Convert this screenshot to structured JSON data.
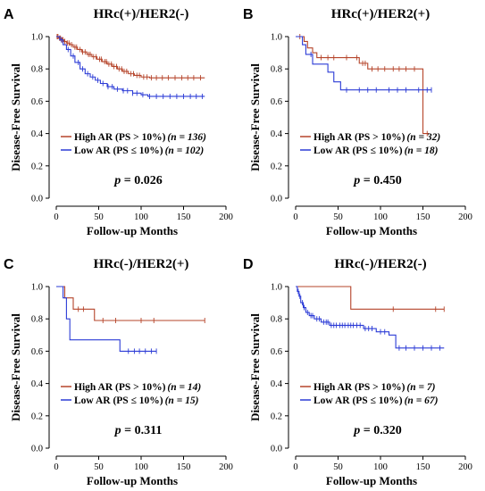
{
  "chart_data": [
    {
      "panel": "A",
      "type": "line",
      "title": "HRc(+)/HER2(-)",
      "xlabel": "Follow-up Months",
      "ylabel": "Disease-Free Survival",
      "xlim": [
        0,
        200
      ],
      "ylim": [
        0,
        1.0
      ],
      "xticks": [
        "0",
        "50",
        "100",
        "150",
        "200"
      ],
      "yticks": [
        "0.0",
        "0.2",
        "0.4",
        "0.6",
        "0.8",
        "1.0"
      ],
      "legend_placement": "lower-left",
      "pvalue_label": "p",
      "pvalue_text": " = 0.026",
      "series": [
        {
          "name": "High AR (PS > 10%)",
          "n_text": "(n = 136)",
          "color": "#B5442A",
          "steps": [
            [
              0,
              1.0
            ],
            [
              3,
              0.99
            ],
            [
              6,
              0.98
            ],
            [
              9,
              0.97
            ],
            [
              12,
              0.96
            ],
            [
              16,
              0.95
            ],
            [
              20,
              0.935
            ],
            [
              25,
              0.92
            ],
            [
              30,
              0.905
            ],
            [
              36,
              0.89
            ],
            [
              42,
              0.875
            ],
            [
              48,
              0.86
            ],
            [
              54,
              0.845
            ],
            [
              60,
              0.83
            ],
            [
              66,
              0.815
            ],
            [
              72,
              0.8
            ],
            [
              78,
              0.785
            ],
            [
              85,
              0.77
            ],
            [
              92,
              0.76
            ],
            [
              100,
              0.75
            ],
            [
              110,
              0.745
            ],
            [
              175,
              0.745
            ]
          ],
          "censors": [
            1,
            2,
            4,
            5,
            7,
            8,
            10,
            13,
            15,
            18,
            22,
            24,
            28,
            31,
            34,
            38,
            40,
            44,
            47,
            51,
            53,
            57,
            59,
            62,
            65,
            68,
            71,
            74,
            77,
            80,
            83,
            88,
            91,
            95,
            98,
            103,
            107,
            112,
            118,
            125,
            132,
            140,
            148,
            155,
            162,
            170
          ]
        },
        {
          "name": "Low AR (PS ≤ 10%)",
          "n_text": "(n = 102)",
          "color": "#2B3BD6",
          "steps": [
            [
              0,
              1.0
            ],
            [
              4,
              0.98
            ],
            [
              8,
              0.95
            ],
            [
              12,
              0.92
            ],
            [
              17,
              0.88
            ],
            [
              22,
              0.84
            ],
            [
              28,
              0.8
            ],
            [
              34,
              0.77
            ],
            [
              40,
              0.75
            ],
            [
              46,
              0.73
            ],
            [
              52,
              0.71
            ],
            [
              60,
              0.69
            ],
            [
              68,
              0.675
            ],
            [
              78,
              0.665
            ],
            [
              90,
              0.65
            ],
            [
              100,
              0.64
            ],
            [
              108,
              0.63
            ],
            [
              175,
              0.63
            ]
          ],
          "censors": [
            6,
            14,
            20,
            26,
            31,
            37,
            43,
            49,
            55,
            61,
            66,
            72,
            79,
            84,
            90,
            95,
            102,
            110,
            118,
            126,
            134,
            142,
            150,
            158,
            165,
            172
          ]
        }
      ]
    },
    {
      "panel": "B",
      "type": "line",
      "title": "HRc(+)/HER2(+)",
      "xlabel": "Follow-up Months",
      "ylabel": "Disease-Free Survival",
      "xlim": [
        0,
        200
      ],
      "ylim": [
        0,
        1.0
      ],
      "xticks": [
        "0",
        "50",
        "100",
        "150",
        "200"
      ],
      "yticks": [
        "0.0",
        "0.2",
        "0.4",
        "0.6",
        "0.8",
        "1.0"
      ],
      "legend_placement": "lower-left",
      "pvalue_label": "p",
      "pvalue_text": " = 0.450",
      "series": [
        {
          "name": "High AR (PS > 10%)",
          "n_text": "(n = 32)",
          "color": "#B5442A",
          "steps": [
            [
              0,
              1.0
            ],
            [
              10,
              0.97
            ],
            [
              14,
              0.93
            ],
            [
              20,
              0.9
            ],
            [
              25,
              0.87
            ],
            [
              75,
              0.835
            ],
            [
              85,
              0.8
            ],
            [
              147,
              0.8
            ],
            [
              150,
              0.4
            ],
            [
              157,
              0.4
            ]
          ],
          "censors": [
            5,
            30,
            38,
            45,
            60,
            72,
            79,
            82,
            90,
            97,
            105,
            115,
            122,
            130,
            140,
            155
          ]
        },
        {
          "name": "Low AR (PS ≤ 10%)",
          "n_text": "(n = 18)",
          "color": "#2B3BD6",
          "steps": [
            [
              0,
              1.0
            ],
            [
              8,
              0.95
            ],
            [
              12,
              0.89
            ],
            [
              20,
              0.83
            ],
            [
              38,
              0.78
            ],
            [
              45,
              0.72
            ],
            [
              53,
              0.67
            ],
            [
              160,
              0.67
            ]
          ],
          "censors": [
            18,
            60,
            75,
            85,
            95,
            110,
            120,
            130,
            145,
            155,
            160
          ]
        }
      ]
    },
    {
      "panel": "C",
      "type": "line",
      "title": "HRc(-)/HER2(+)",
      "xlabel": "Follow-up Months",
      "ylabel": "Disease-Free Survival",
      "xlim": [
        0,
        200
      ],
      "ylim": [
        0,
        1.0
      ],
      "xticks": [
        "0",
        "50",
        "100",
        "150",
        "200"
      ],
      "yticks": [
        "0.0",
        "0.2",
        "0.4",
        "0.6",
        "0.8",
        "1.0"
      ],
      "legend_placement": "lower-left",
      "pvalue_label": "p",
      "pvalue_text": " = 0.311",
      "series": [
        {
          "name": "High AR (PS > 10%)",
          "n_text": "(n = 14)",
          "color": "#B5442A",
          "steps": [
            [
              0,
              1.0
            ],
            [
              10,
              0.93
            ],
            [
              20,
              0.86
            ],
            [
              45,
              0.79
            ],
            [
              175,
              0.79
            ]
          ],
          "censors": [
            26,
            32,
            55,
            70,
            100,
            115,
            175
          ]
        },
        {
          "name": "Low AR (PS ≤ 10%)",
          "n_text": "(n = 15)",
          "color": "#2B3BD6",
          "steps": [
            [
              0,
              1.0
            ],
            [
              8,
              0.93
            ],
            [
              12,
              0.8
            ],
            [
              16,
              0.67
            ],
            [
              75,
              0.6
            ],
            [
              118,
              0.6
            ]
          ],
          "censors": [
            85,
            92,
            98,
            105,
            112,
            118
          ]
        }
      ]
    },
    {
      "panel": "D",
      "type": "line",
      "title": "HRc(-)/HER2(-)",
      "xlabel": "Follow-up Months",
      "ylabel": "Disease-Free Survival",
      "xlim": [
        0,
        200
      ],
      "ylim": [
        0,
        1.0
      ],
      "xticks": [
        "0",
        "50",
        "100",
        "150",
        "200"
      ],
      "yticks": [
        "0.0",
        "0.2",
        "0.4",
        "0.6",
        "0.8",
        "1.0"
      ],
      "legend_placement": "lower-left",
      "pvalue_label": "p",
      "pvalue_text": " = 0.320",
      "series": [
        {
          "name": "High AR (PS > 10%)",
          "n_text": "(n = 7)",
          "color": "#B5442A",
          "steps": [
            [
              0,
              1.0
            ],
            [
              65,
              0.86
            ],
            [
              175,
              0.86
            ]
          ],
          "censors": [
            115,
            165,
            175
          ]
        },
        {
          "name": "Low AR (PS ≤ 10%)",
          "n_text": "(n = 67)",
          "color": "#2B3BD6",
          "steps": [
            [
              0,
              1.0
            ],
            [
              2,
              0.97
            ],
            [
              4,
              0.94
            ],
            [
              6,
              0.9
            ],
            [
              9,
              0.87
            ],
            [
              12,
              0.84
            ],
            [
              16,
              0.82
            ],
            [
              22,
              0.8
            ],
            [
              30,
              0.78
            ],
            [
              40,
              0.76
            ],
            [
              80,
              0.74
            ],
            [
              95,
              0.72
            ],
            [
              110,
              0.7
            ],
            [
              118,
              0.62
            ],
            [
              175,
              0.62
            ]
          ],
          "censors": [
            3,
            5,
            8,
            10,
            14,
            18,
            20,
            25,
            28,
            33,
            36,
            38,
            42,
            45,
            48,
            52,
            55,
            58,
            62,
            65,
            68,
            72,
            76,
            82,
            86,
            90,
            100,
            105,
            122,
            130,
            140,
            150,
            160,
            170
          ]
        }
      ]
    }
  ]
}
